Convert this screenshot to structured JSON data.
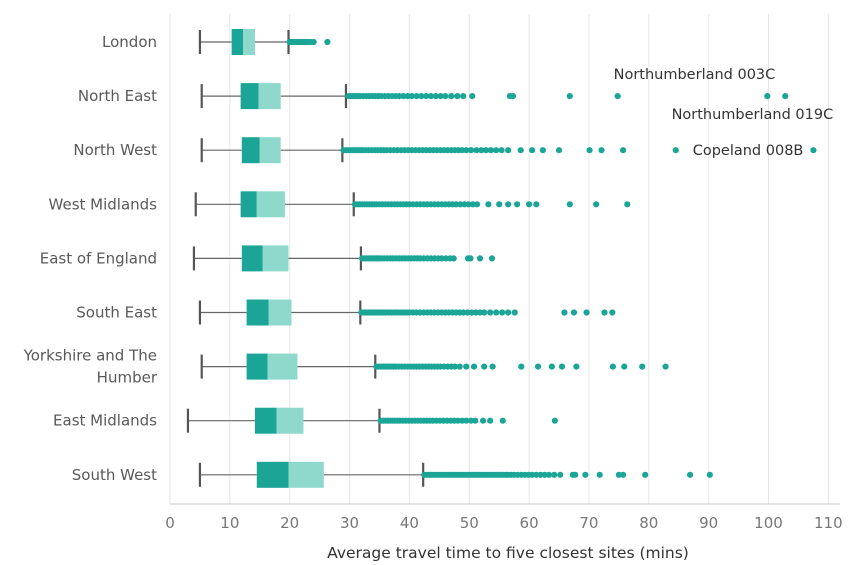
{
  "chart_data": {
    "type": "boxplot",
    "orientation": "horizontal",
    "xlabel": "Average travel time to five closest sites (mins)",
    "xlim": [
      0,
      112
    ],
    "x_ticks": [
      0,
      10,
      20,
      30,
      40,
      50,
      60,
      70,
      80,
      90,
      100,
      110
    ],
    "grid": true,
    "colors": {
      "box_lower": "#1ba597",
      "box_upper": "#8fd9cc",
      "outlier": "#1ba597",
      "whisker": "#666666",
      "grid": "#e6e6e6",
      "text": "#595959"
    },
    "categories": [
      "London",
      "North East",
      "North West",
      "West Midlands",
      "East of England",
      "South East",
      "Yorkshire and The Humber",
      "East Midlands",
      "South West"
    ],
    "category_lines": [
      [
        "London"
      ],
      [
        "North East"
      ],
      [
        "North West"
      ],
      [
        "West Midlands"
      ],
      [
        "East of England"
      ],
      [
        "South East"
      ],
      [
        "Yorkshire and The",
        "Humber"
      ],
      [
        "East Midlands"
      ],
      [
        "South West"
      ]
    ],
    "series": [
      {
        "category": "London",
        "min": 5,
        "q1": 10.3,
        "median": 12.2,
        "q3": 14.2,
        "max": 19.8,
        "outliers": [
          20.0,
          20.3,
          20.7,
          21.0,
          21.4,
          21.8,
          22.2,
          22.6,
          23.0,
          23.5,
          24.0,
          26.3
        ]
      },
      {
        "category": "North East",
        "min": 5.3,
        "q1": 11.8,
        "median": 14.8,
        "q3": 18.5,
        "max": 29.4,
        "outliers": [
          29.8,
          30.2,
          30.6,
          31.0,
          31.4,
          31.8,
          32.3,
          32.8,
          33.3,
          33.8,
          34.3,
          34.8,
          35.3,
          35.9,
          36.5,
          37.1,
          37.7,
          38.3,
          39.0,
          39.7,
          40.4,
          41.2,
          42.0,
          42.8,
          43.6,
          44.4,
          45.2,
          46.0,
          47.0,
          48.0,
          49.0,
          50.5,
          56.8,
          57.3,
          66.8,
          74.8,
          99.8,
          102.8
        ],
        "annotations": [
          {
            "text": "Northumberland 003C",
            "x": 99.8,
            "placement": "above"
          },
          {
            "text": "Northumberland 019C",
            "x": 102.8,
            "placement": "below"
          }
        ]
      },
      {
        "category": "North West",
        "min": 5.3,
        "q1": 12.0,
        "median": 15.0,
        "q3": 18.5,
        "max": 28.8,
        "outliers": [
          29.0,
          29.4,
          29.8,
          30.2,
          30.6,
          31.0,
          31.4,
          31.8,
          32.2,
          32.7,
          33.2,
          33.7,
          34.2,
          34.7,
          35.2,
          35.7,
          36.2,
          36.8,
          37.4,
          38.0,
          38.6,
          39.2,
          39.8,
          40.4,
          41.0,
          41.6,
          42.2,
          42.8,
          43.4,
          44.0,
          44.6,
          45.2,
          45.8,
          46.4,
          47.0,
          47.6,
          48.2,
          48.8,
          49.5,
          50.3,
          51.2,
          52.0,
          52.8,
          53.6,
          54.5,
          55.4,
          56.5,
          58.6,
          60.5,
          62.3,
          65.0,
          70.1,
          72.1,
          75.7,
          84.5,
          107.5
        ],
        "annotations": [
          {
            "text": "Copeland 008B",
            "x": 107.5,
            "placement": "left"
          }
        ]
      },
      {
        "category": "West Midlands",
        "min": 4.3,
        "q1": 11.8,
        "median": 14.5,
        "q3": 19.2,
        "max": 30.7,
        "outliers": [
          30.9,
          31.3,
          31.7,
          32.1,
          32.5,
          32.9,
          33.3,
          33.7,
          34.1,
          34.5,
          35.0,
          35.5,
          36.0,
          36.5,
          37.0,
          37.5,
          38.0,
          38.5,
          39.0,
          39.5,
          40.0,
          40.6,
          41.2,
          41.8,
          42.4,
          43.0,
          43.6,
          44.2,
          44.8,
          45.4,
          46.0,
          46.6,
          47.2,
          47.8,
          48.5,
          49.2,
          49.9,
          50.6,
          51.3,
          53.2,
          55.0,
          56.5,
          58.0,
          60.0,
          61.2,
          66.8,
          71.2,
          76.4
        ]
      },
      {
        "category": "East of England",
        "min": 4.0,
        "q1": 12.0,
        "median": 15.5,
        "q3": 19.8,
        "max": 31.9,
        "outliers": [
          32.1,
          32.5,
          32.9,
          33.3,
          33.7,
          34.1,
          34.5,
          34.9,
          35.3,
          35.8,
          36.3,
          36.8,
          37.3,
          37.8,
          38.3,
          38.8,
          39.3,
          39.8,
          40.3,
          40.8,
          41.3,
          41.8,
          42.4,
          43.0,
          43.6,
          44.2,
          44.8,
          45.4,
          46.1,
          46.8,
          47.4,
          49.8,
          50.2,
          51.8,
          53.8
        ]
      },
      {
        "category": "South East",
        "min": 5.0,
        "q1": 12.8,
        "median": 16.5,
        "q3": 20.3,
        "max": 31.8,
        "outliers": [
          32.0,
          32.4,
          32.8,
          33.2,
          33.6,
          34.0,
          34.4,
          34.8,
          35.2,
          35.6,
          36.0,
          36.5,
          37.0,
          37.5,
          38.0,
          38.5,
          39.0,
          39.5,
          40.0,
          40.6,
          41.2,
          41.8,
          42.4,
          43.0,
          43.6,
          44.2,
          44.8,
          45.4,
          46.0,
          46.6,
          47.2,
          47.8,
          48.4,
          49.0,
          49.7,
          50.4,
          51.1,
          51.8,
          52.5,
          53.5,
          54.5,
          55.5,
          56.5,
          57.6,
          65.9,
          67.5,
          69.6,
          72.6,
          73.9
        ]
      },
      {
        "category": "Yorkshire and The Humber",
        "min": 5.3,
        "q1": 12.8,
        "median": 16.3,
        "q3": 21.3,
        "max": 34.3,
        "outliers": [
          34.5,
          34.9,
          35.3,
          35.7,
          36.1,
          36.5,
          36.9,
          37.3,
          37.7,
          38.2,
          38.7,
          39.2,
          39.7,
          40.2,
          40.7,
          41.2,
          41.7,
          42.2,
          42.7,
          43.2,
          43.7,
          44.2,
          44.7,
          45.2,
          45.8,
          46.4,
          47.0,
          47.6,
          48.4,
          49.5,
          50.8,
          52.5,
          53.9,
          58.7,
          61.5,
          63.8,
          65.5,
          67.9,
          74.0,
          75.9,
          78.9,
          82.8
        ]
      },
      {
        "category": "East Midlands",
        "min": 3.0,
        "q1": 14.2,
        "median": 17.8,
        "q3": 22.3,
        "max": 35.0,
        "outliers": [
          35.2,
          35.6,
          36.0,
          36.4,
          36.8,
          37.2,
          37.6,
          38.0,
          38.4,
          38.9,
          39.4,
          39.9,
          40.4,
          40.9,
          41.4,
          41.9,
          42.4,
          42.9,
          43.4,
          43.9,
          44.5,
          45.1,
          45.7,
          46.3,
          46.9,
          47.5,
          48.1,
          48.8,
          49.5,
          50.3,
          51.0,
          52.3,
          53.5,
          55.6,
          64.3
        ]
      },
      {
        "category": "South West",
        "min": 5.0,
        "q1": 14.5,
        "median": 19.8,
        "q3": 25.7,
        "max": 42.3,
        "outliers": [
          42.5,
          42.9,
          43.3,
          43.7,
          44.1,
          44.5,
          44.9,
          45.3,
          45.7,
          46.1,
          46.5,
          46.9,
          47.3,
          47.7,
          48.1,
          48.5,
          48.9,
          49.3,
          49.7,
          50.1,
          50.5,
          50.9,
          51.3,
          51.7,
          52.1,
          52.5,
          52.9,
          53.3,
          53.7,
          54.1,
          54.5,
          54.9,
          55.3,
          55.7,
          56.1,
          56.5,
          57.0,
          57.5,
          58.1,
          58.7,
          59.3,
          59.9,
          60.5,
          61.2,
          61.9,
          62.6,
          63.3,
          64.2,
          65.2,
          67.3,
          67.7,
          69.4,
          71.8,
          75.0,
          75.7,
          79.4,
          86.9,
          90.2
        ]
      }
    ]
  }
}
